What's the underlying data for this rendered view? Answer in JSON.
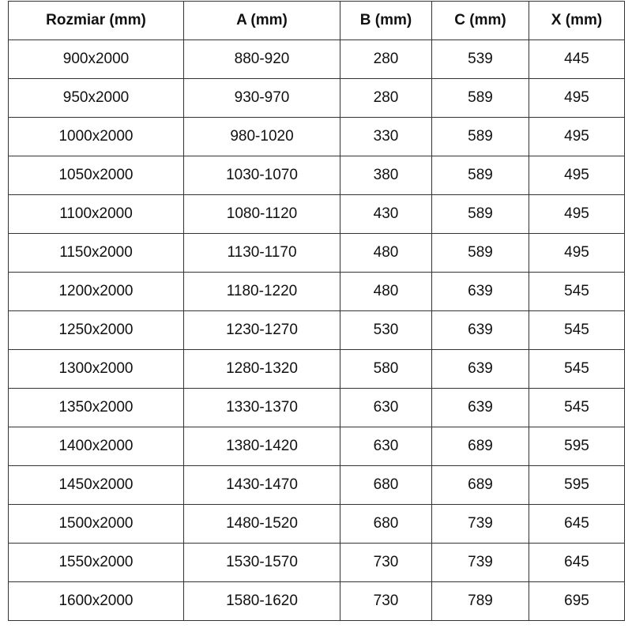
{
  "table": {
    "headers": [
      "Rozmiar (mm)",
      "A (mm)",
      "B (mm)",
      "C (mm)",
      "X (mm)"
    ],
    "rows": [
      [
        "900x2000",
        "880-920",
        "280",
        "539",
        "445"
      ],
      [
        "950x2000",
        "930-970",
        "280",
        "589",
        "495"
      ],
      [
        "1000x2000",
        "980-1020",
        "330",
        "589",
        "495"
      ],
      [
        "1050x2000",
        "1030-1070",
        "380",
        "589",
        "495"
      ],
      [
        "1100x2000",
        "1080-1120",
        "430",
        "589",
        "495"
      ],
      [
        "1150x2000",
        "1130-1170",
        "480",
        "589",
        "495"
      ],
      [
        "1200x2000",
        "1180-1220",
        "480",
        "639",
        "545"
      ],
      [
        "1250x2000",
        "1230-1270",
        "530",
        "639",
        "545"
      ],
      [
        "1300x2000",
        "1280-1320",
        "580",
        "639",
        "545"
      ],
      [
        "1350x2000",
        "1330-1370",
        "630",
        "639",
        "545"
      ],
      [
        "1400x2000",
        "1380-1420",
        "630",
        "689",
        "595"
      ],
      [
        "1450x2000",
        "1430-1470",
        "680",
        "689",
        "595"
      ],
      [
        "1500x2000",
        "1480-1520",
        "680",
        "739",
        "645"
      ],
      [
        "1550x2000",
        "1530-1570",
        "730",
        "739",
        "645"
      ],
      [
        "1600x2000",
        "1580-1620",
        "730",
        "789",
        "695"
      ]
    ]
  }
}
